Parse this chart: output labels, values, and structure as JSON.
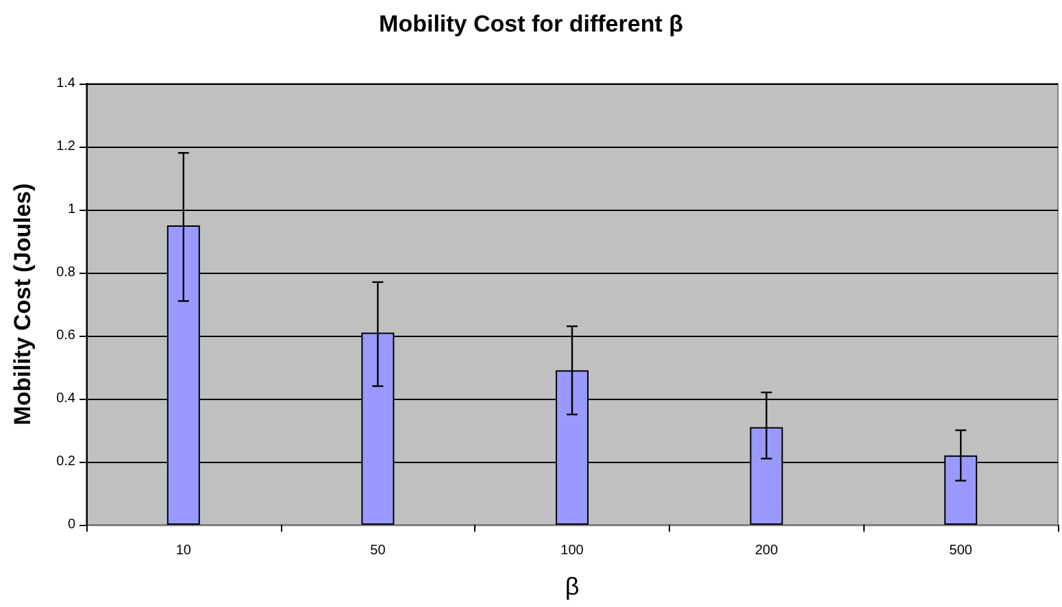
{
  "chart_data": {
    "type": "bar",
    "title": "Mobility Cost for different β",
    "xlabel": "β",
    "ylabel": "Mobility Cost (Joules)",
    "categories": [
      "10",
      "50",
      "100",
      "200",
      "500"
    ],
    "values": [
      0.95,
      0.61,
      0.49,
      0.31,
      0.22
    ],
    "errors": [
      [
        0.71,
        1.18
      ],
      [
        0.44,
        0.77
      ],
      [
        0.35,
        0.63
      ],
      [
        0.21,
        0.42
      ],
      [
        0.14,
        0.3
      ]
    ],
    "color": "#9999ff",
    "ylim": [
      0,
      1.4
    ],
    "yticks": [
      0,
      0.2,
      0.4,
      0.6,
      0.8,
      1,
      1.2,
      1.4
    ],
    "grid": "y"
  }
}
